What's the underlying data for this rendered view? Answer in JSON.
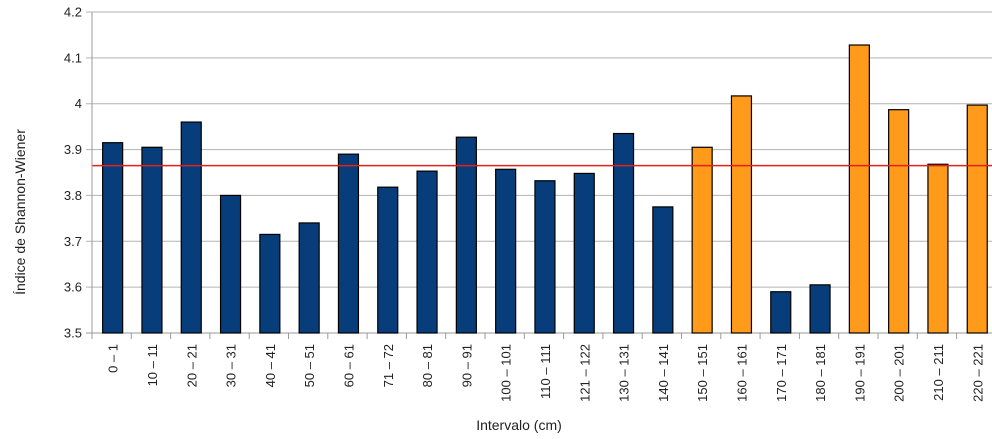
{
  "chart_data": {
    "type": "bar",
    "xlabel": "Intervalo (cm)",
    "ylabel": "Índice de Shannon-Wiener",
    "ylim": [
      3.5,
      4.2
    ],
    "yticks": [
      "3.5",
      "3.6",
      "3.7",
      "3.8",
      "3.9",
      "4",
      "4.1",
      "4.2"
    ],
    "grid": true,
    "reference_line": {
      "value": 3.865,
      "color": "#e32119"
    },
    "categories": [
      "0 – 1",
      "10 – 11",
      "20 – 21",
      "30 – 31",
      "40 – 41",
      "50 – 51",
      "60 – 61",
      "71 – 72",
      "80 – 81",
      "90 – 91",
      "100 – 101",
      "110 – 111",
      "121 – 122",
      "130 – 131",
      "140 – 141",
      "150 – 151",
      "160 – 161",
      "170 – 171",
      "180 – 181",
      "190 – 191",
      "200 – 201",
      "210 – 211",
      "220 – 221"
    ],
    "values": [
      3.915,
      3.905,
      3.96,
      3.8,
      3.715,
      3.74,
      3.89,
      3.818,
      3.853,
      3.927,
      3.857,
      3.832,
      3.848,
      3.935,
      3.775,
      3.905,
      4.017,
      3.59,
      3.605,
      4.128,
      3.987,
      3.868,
      3.997
    ],
    "colors": [
      "#073d7a",
      "#073d7a",
      "#073d7a",
      "#073d7a",
      "#073d7a",
      "#073d7a",
      "#073d7a",
      "#073d7a",
      "#073d7a",
      "#073d7a",
      "#073d7a",
      "#073d7a",
      "#073d7a",
      "#073d7a",
      "#073d7a",
      "#ff9a1a",
      "#ff9a1a",
      "#073d7a",
      "#073d7a",
      "#ff9a1a",
      "#ff9a1a",
      "#ff9a1a",
      "#ff9a1a"
    ]
  }
}
